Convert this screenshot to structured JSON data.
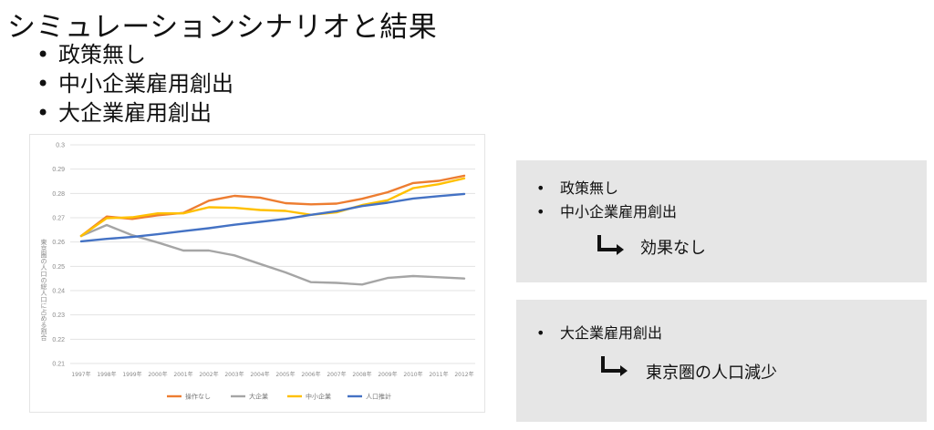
{
  "title": "シミュレーションシナリオと結果",
  "bullets": [
    "政策無し",
    "中小企業雇用創出",
    "大企業雇用創出"
  ],
  "box1": {
    "items": [
      "政策無し",
      "中小企業雇用創出"
    ],
    "result": "効果なし"
  },
  "box2": {
    "items": [
      "大企業雇用創出"
    ],
    "result": "東京圏の人口減少"
  },
  "bullet_glyph": "•",
  "chart_data": {
    "type": "line",
    "ylabel": "東京圏の人口の総人口に占める割合",
    "ylim": [
      0.21,
      0.3
    ],
    "yticks": [
      "0.3",
      "0.29",
      "0.28",
      "0.27",
      "0.26",
      "0.25",
      "0.24",
      "0.23",
      "0.22",
      "0.21"
    ],
    "categories": [
      "1997年",
      "1998年",
      "1999年",
      "2000年",
      "2001年",
      "2002年",
      "2003年",
      "2004年",
      "2005年",
      "2006年",
      "2007年",
      "2008年",
      "2009年",
      "2010年",
      "2011年",
      "2012年"
    ],
    "grid": true,
    "legend_position": "bottom",
    "series": [
      {
        "name": "操作なし",
        "color": "#ed7d31",
        "values": [
          0.2625,
          0.2705,
          0.2695,
          0.271,
          0.272,
          0.277,
          0.279,
          0.2783,
          0.276,
          0.2755,
          0.2758,
          0.2778,
          0.2805,
          0.2843,
          0.2852,
          0.2873
        ]
      },
      {
        "name": "大企業",
        "color": "#a5a5a5",
        "values": [
          0.2625,
          0.267,
          0.2628,
          0.2598,
          0.2565,
          0.2565,
          0.2545,
          0.251,
          0.2475,
          0.2435,
          0.2432,
          0.2425,
          0.2452,
          0.246,
          0.2455,
          0.245
        ]
      },
      {
        "name": "中小企業",
        "color": "#ffc000",
        "values": [
          0.2625,
          0.2698,
          0.2702,
          0.2718,
          0.2718,
          0.2743,
          0.2741,
          0.2732,
          0.2728,
          0.2712,
          0.2722,
          0.2752,
          0.2772,
          0.2822,
          0.2838,
          0.2862
        ]
      },
      {
        "name": "人口推計",
        "color": "#4472c4",
        "values": [
          0.2603,
          0.2613,
          0.2621,
          0.2632,
          0.2645,
          0.2657,
          0.2671,
          0.2683,
          0.2695,
          0.2712,
          0.2727,
          0.2748,
          0.2762,
          0.2779,
          0.2789,
          0.2798
        ]
      }
    ]
  }
}
